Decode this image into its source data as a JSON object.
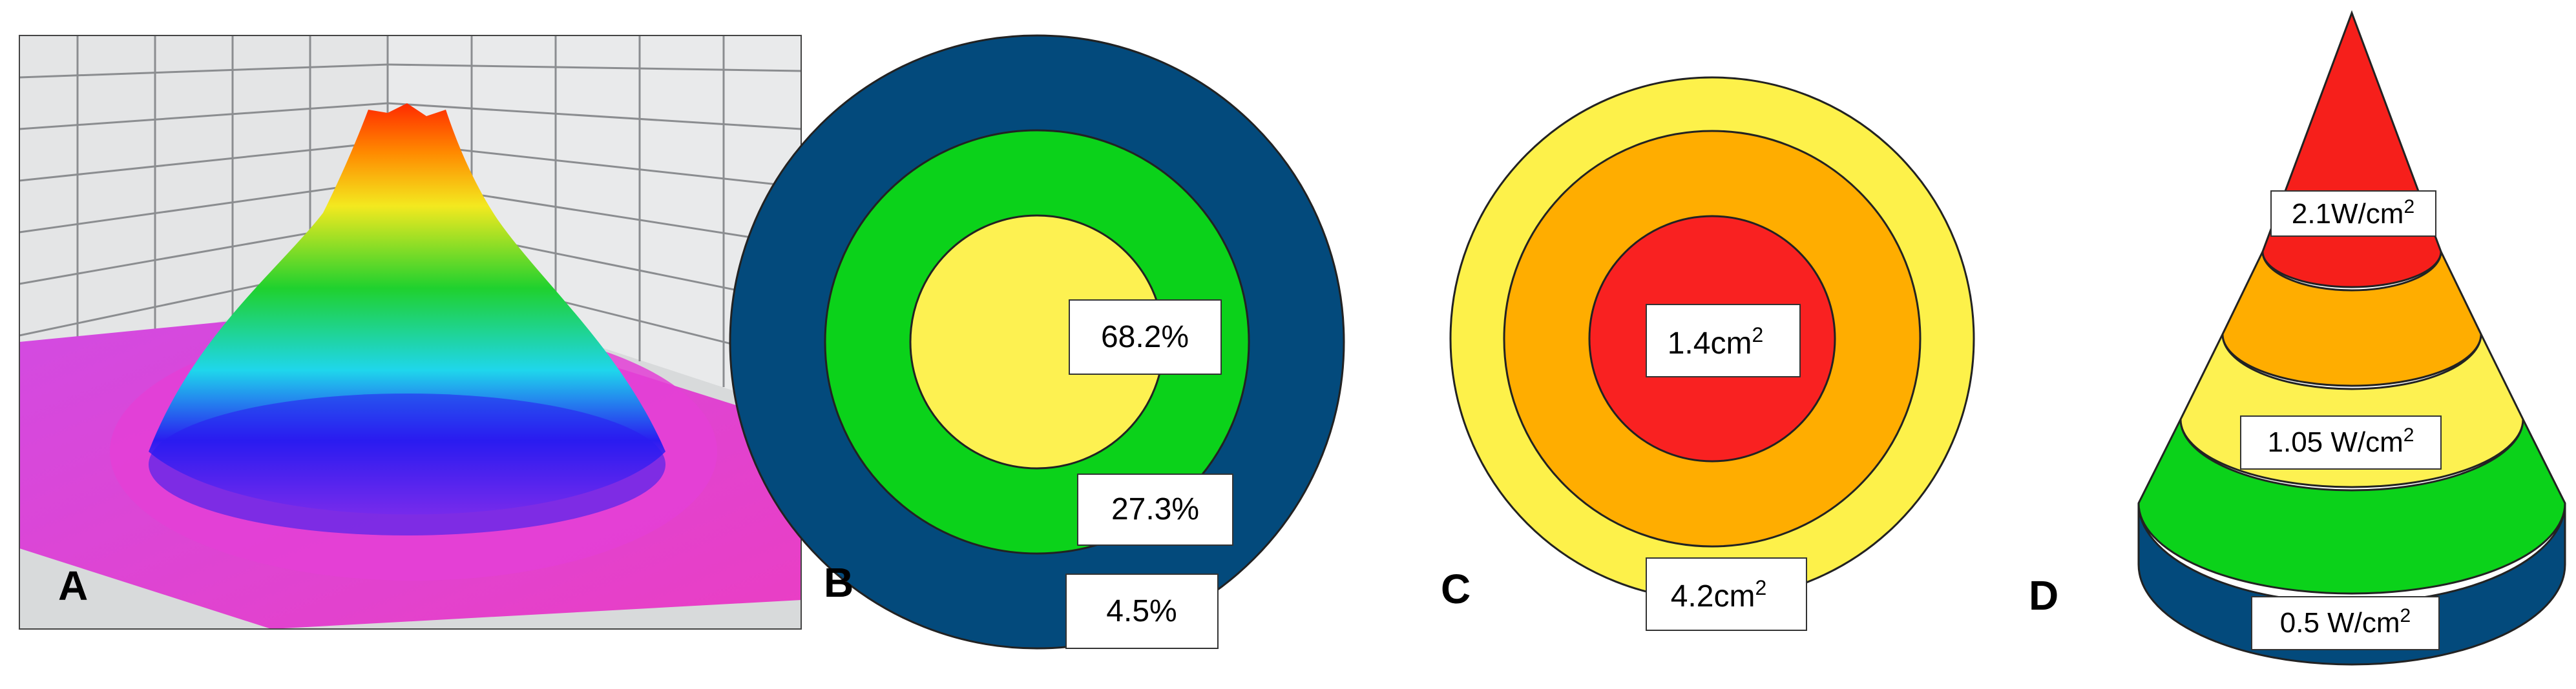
{
  "panels": {
    "a": {
      "letter": "A"
    },
    "b": {
      "letter": "B",
      "colors": {
        "outer": "#034a7c",
        "middle": "#0bd21a",
        "inner": "#fdf151"
      },
      "labels": {
        "inner": "68.2%",
        "middle": "27.3%",
        "outer": "4.5%"
      }
    },
    "c": {
      "letter": "C",
      "colors": {
        "outer": "#fdf14a",
        "middle": "#ffad00",
        "inner": "#f92121"
      },
      "labels": {
        "inner_value": "1.4cm",
        "inner_exp": "2",
        "outer_value": "4.2cm",
        "outer_exp": "2"
      }
    },
    "d": {
      "letter": "D",
      "colors": {
        "tip": "#f61f1b",
        "band2": "#ffad00",
        "band3": "#fdf151",
        "band4": "#0bd21a",
        "base": "#034a7c"
      },
      "labels": {
        "top_value": "2.1W/cm",
        "top_exp": "2",
        "middle_value": "1.05 W/cm",
        "middle_exp": "2",
        "bottom_value": "0.5 W/cm",
        "bottom_exp": "2"
      }
    }
  }
}
